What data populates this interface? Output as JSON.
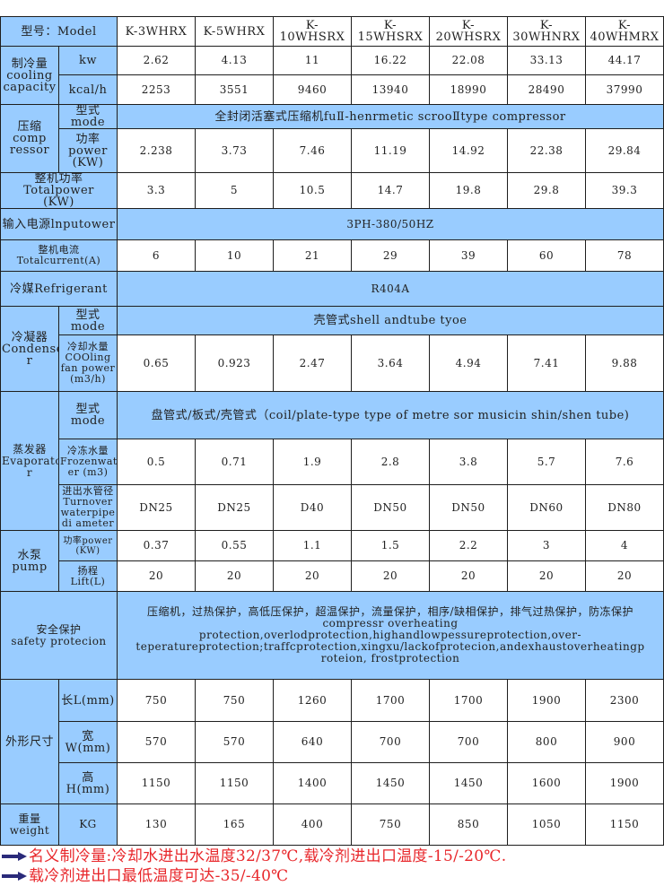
{
  "header": {
    "label": "型号：Model",
    "models": [
      "K-3WHRX",
      "K-5WHRX",
      "K-10WHSRX",
      "K-15WHSRX",
      "K-20WHSRX",
      "K-30WHNRX",
      "K-40WHMRX"
    ]
  },
  "cooling_capacity": {
    "label": "制冷量\ncooling\ncapacity",
    "kw": {
      "unit": "kw",
      "values": [
        "2.62",
        "4.13",
        "11",
        "16.22",
        "22.08",
        "33.13",
        "44.17"
      ]
    },
    "kcal": {
      "unit": "kcal/h",
      "values": [
        "2253",
        "3551",
        "9460",
        "13940",
        "18990",
        "28490",
        "37990"
      ]
    }
  },
  "compressor": {
    "label": "压缩\ncomp\nressor",
    "mode_label": "型式mode",
    "mode_value": "全封闭活塞式压缩机fuⅡ-henrmetic scrooⅡtype compressor",
    "power_label": "功率\npower\n(KW)",
    "power_values": [
      "2.238",
      "3.73",
      "7.46",
      "11.19",
      "14.92",
      "22.38",
      "29.84"
    ]
  },
  "total_power": {
    "label": "整机功率\nTotalpower\n(KW)",
    "values": [
      "3.3",
      "5",
      "10.5",
      "14.7",
      "19.8",
      "29.8",
      "39.3"
    ]
  },
  "input_power": {
    "label": "输入电源lnputower",
    "value": "3PH-380/50HZ"
  },
  "total_current": {
    "label": "整机电流Totalcurrent(A)",
    "values": [
      "6",
      "10",
      "21",
      "29",
      "39",
      "60",
      "78"
    ]
  },
  "refrigerant": {
    "label": "冷媒Refrigerant",
    "value": "R404A"
  },
  "condenser": {
    "label": "冷凝器\nCondense\nr",
    "mode_label": "型式mode",
    "mode_value": "壳管式shell andtube tyoe",
    "water_label": "冷却水量\nCOOling\nfan power\n(m3/h)",
    "water_values": [
      "0.65",
      "0.923",
      "2.47",
      "3.64",
      "4.94",
      "7.41",
      "9.88"
    ]
  },
  "evaporator": {
    "label": "蒸发器\nEvaporato\nr",
    "mode_label": "型式mode",
    "mode_value": "盘管式/板式/壳管式（coil/plate-type type of metre sor musicin shin/shen tube)",
    "frozen_label": "冷冻水量\nFrozenwat\ner (m3)",
    "frozen_values": [
      "0.5",
      "0.71",
      "1.9",
      "2.8",
      "3.8",
      "5.7",
      "7.6"
    ],
    "pipe_label": "进出水管径\nTurnover\nwaterpipe\ndi ameter",
    "pipe_values": [
      "DN25",
      "DN25",
      "D40",
      "DN50",
      "DN50",
      "DN60",
      "DN80"
    ]
  },
  "pump": {
    "label": "水泵\npump",
    "power_label": "功率power\n(KW)",
    "power_values": [
      "0.37",
      "0.55",
      "1.1",
      "1.5",
      "2.2",
      "3",
      "4"
    ],
    "lift_label": "扬程\nLift(L)",
    "lift_values": [
      "20",
      "20",
      "20",
      "20",
      "20",
      "20",
      "20"
    ]
  },
  "safety": {
    "label": "安全保护\nsafety protecion",
    "value": "压缩机，过热保护，高低压保护，超温保护，流量保护，相序/缺相保护，排气过热保护，防冻保护\ncompressr overheating\nprotection,overlodprotection,highandlowpessureprotection,over-\nteperatureprotection;traffcprotection,xingxu/lackofprotecion,andexhaustoverheatingp\nroteion,     frostprotection"
  },
  "dimensions": {
    "label": "外形尺寸",
    "length": {
      "label": "长L(mm)",
      "values": [
        "750",
        "750",
        "1260",
        "1700",
        "1700",
        "1900",
        "2300"
      ]
    },
    "width": {
      "label": "宽W(mm)",
      "values": [
        "570",
        "570",
        "640",
        "700",
        "700",
        "800",
        "900"
      ]
    },
    "height": {
      "label": "高H(mm)",
      "values": [
        "1150",
        "1150",
        "1400",
        "1450",
        "1450",
        "1600",
        "1900"
      ]
    }
  },
  "weight": {
    "label": "重量\nweight",
    "unit": "KG",
    "values": [
      "130",
      "165",
      "400",
      "750",
      "850",
      "1050",
      "1150"
    ]
  },
  "notes": [
    {
      "icon": "arrow-right-icon",
      "text": "名义制冷量:冷却水进出水温度32/37℃,载冷剂进出口温度-15/-20℃."
    },
    {
      "icon": "arrow-right-icon",
      "text": "载冷剂进出口最低温度可达-35/-40℃"
    }
  ],
  "colors": {
    "header_fill": "#99ccff",
    "note_text": "#e8262a",
    "arrow": "#2a2a7a"
  }
}
